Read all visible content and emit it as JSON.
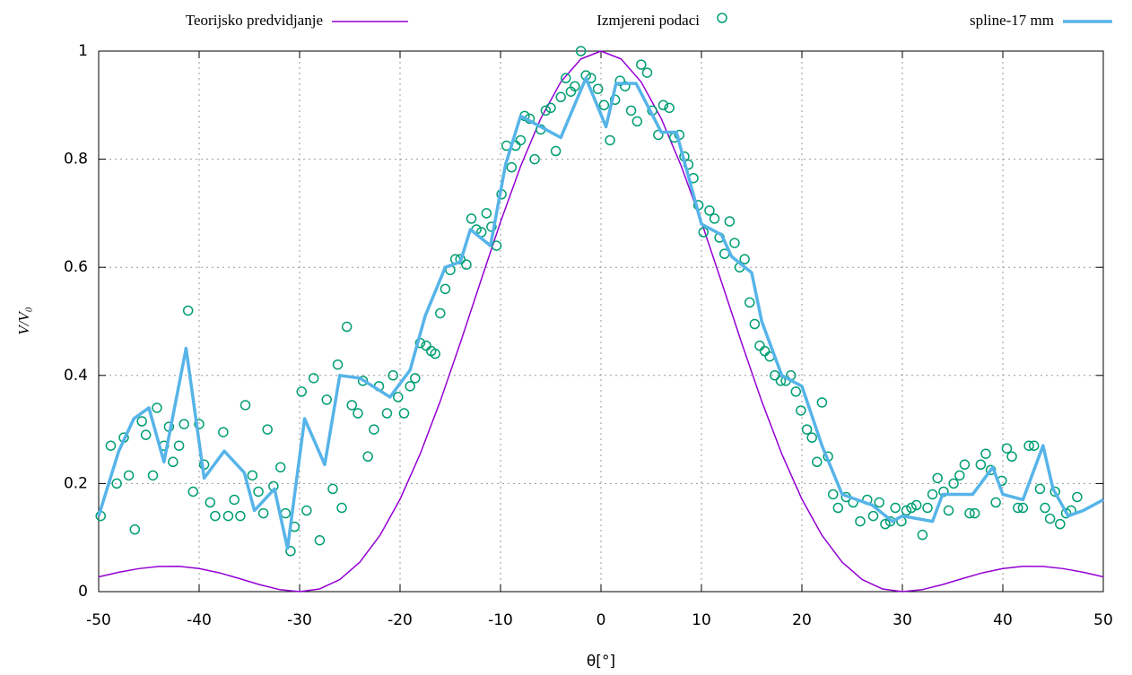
{
  "chart_data": {
    "type": "line",
    "xlabel": "θ[°]",
    "ylabel": "V/V₀",
    "xlim": [
      -50,
      50
    ],
    "ylim": [
      0,
      1
    ],
    "xticks": [
      -50,
      -40,
      -30,
      -20,
      -10,
      0,
      10,
      20,
      30,
      40,
      50
    ],
    "yticks": [
      0,
      0.2,
      0.4,
      0.6,
      0.8,
      1
    ],
    "grid": true,
    "legend": "top",
    "series": [
      {
        "name": "Teorijsko predvidjanje",
        "type": "line",
        "color": "#9400d3",
        "x": [
          -50,
          -48,
          -46,
          -44,
          -42,
          -40,
          -38,
          -36,
          -34,
          -32,
          -30,
          -28,
          -26,
          -24,
          -22,
          -20,
          -18,
          -16,
          -14,
          -12,
          -10,
          -8,
          -6,
          -4,
          -2,
          0,
          2,
          4,
          6,
          8,
          10,
          12,
          14,
          16,
          18,
          20,
          22,
          24,
          26,
          28,
          30,
          32,
          34,
          36,
          38,
          40,
          42,
          44,
          46,
          48,
          50
        ],
        "values": [
          0.0273,
          0.0358,
          0.0426,
          0.0466,
          0.0468,
          0.0427,
          0.0349,
          0.0243,
          0.0131,
          0.0038,
          0,
          0.005,
          0.0223,
          0.0547,
          0.1041,
          0.171,
          0.2546,
          0.3523,
          0.4602,
          0.5728,
          0.6839,
          0.7869,
          0.8751,
          0.9429,
          0.9855,
          1,
          0.9855,
          0.9429,
          0.8751,
          0.7869,
          0.6839,
          0.5728,
          0.4602,
          0.3523,
          0.2546,
          0.171,
          0.1041,
          0.0547,
          0.0223,
          0.005,
          0,
          0.0038,
          0.0131,
          0.0243,
          0.0349,
          0.0427,
          0.0468,
          0.0466,
          0.0426,
          0.0358,
          0.0273
        ]
      },
      {
        "name": "Izmjereni podaci",
        "type": "scatter",
        "color": "#009e73",
        "x": [
          -49.8,
          -48.8,
          -48.2,
          -47.5,
          -47,
          -46.4,
          -45.7,
          -45.3,
          -44.6,
          -44.2,
          -43.5,
          -43,
          -42.6,
          -42,
          -41.5,
          -41.1,
          -40.6,
          -40,
          -39.5,
          -38.9,
          -38.4,
          -37.6,
          -37.1,
          -36.5,
          -35.9,
          -35.4,
          -34.7,
          -34.1,
          -33.6,
          -33.2,
          -32.6,
          -31.9,
          -31.4,
          -30.9,
          -30.5,
          -29.8,
          -29.3,
          -28.6,
          -28,
          -27.3,
          -26.7,
          -26.2,
          -25.8,
          -25.3,
          -24.8,
          -24.2,
          -23.7,
          -23.2,
          -22.6,
          -22.1,
          -21.3,
          -20.7,
          -20.2,
          -19.6,
          -19,
          -18.5,
          -18,
          -17.4,
          -16.9,
          -16.5,
          -16,
          -15.5,
          -15,
          -14.5,
          -14,
          -13.4,
          -12.9,
          -12.4,
          -11.9,
          -11.4,
          -10.9,
          -10.4,
          -9.9,
          -9.4,
          -8.9,
          -8.5,
          -8,
          -7.6,
          -7.1,
          -6.6,
          -6,
          -5.5,
          -5,
          -4.5,
          -4,
          -3.5,
          -3,
          -2.6,
          -2,
          -1.5,
          -1,
          -0.3,
          0.3,
          0.9,
          1.4,
          1.9,
          2.4,
          3,
          3.6,
          4,
          4.6,
          5.1,
          5.7,
          6.2,
          6.8,
          7.3,
          7.8,
          8.3,
          8.7,
          9.2,
          9.7,
          10.2,
          10.8,
          11.3,
          11.8,
          12.3,
          12.8,
          13.3,
          13.8,
          14.3,
          14.8,
          15.3,
          15.8,
          16.3,
          16.8,
          17.3,
          17.9,
          18.4,
          18.9,
          19.4,
          19.9,
          20.5,
          21,
          21.5,
          22,
          22.6,
          23.1,
          23.6,
          24.4,
          25.1,
          25.8,
          26.5,
          27.1,
          27.7,
          28.3,
          28.8,
          29.3,
          29.9,
          30.4,
          30.9,
          31.4,
          32,
          32.5,
          33,
          33.5,
          34.1,
          34.6,
          35.1,
          35.7,
          36.2,
          36.7,
          37.2,
          37.8,
          38.3,
          38.8,
          39.3,
          39.9,
          40.4,
          40.9,
          41.5,
          42,
          42.6,
          43.1,
          43.7,
          44.2,
          44.7,
          45.2,
          45.7,
          46.3,
          46.8,
          47.4
        ],
        "values": [
          0.14,
          0.27,
          0.2,
          0.285,
          0.215,
          0.115,
          0.315,
          0.29,
          0.215,
          0.34,
          0.27,
          0.305,
          0.24,
          0.27,
          0.31,
          0.52,
          0.185,
          0.31,
          0.235,
          0.165,
          0.14,
          0.295,
          0.14,
          0.17,
          0.14,
          0.345,
          0.215,
          0.185,
          0.145,
          0.3,
          0.195,
          0.23,
          0.145,
          0.075,
          0.12,
          0.37,
          0.15,
          0.395,
          0.095,
          0.355,
          0.19,
          0.42,
          0.155,
          0.49,
          0.345,
          0.33,
          0.39,
          0.25,
          0.3,
          0.38,
          0.33,
          0.4,
          0.36,
          0.33,
          0.38,
          0.395,
          0.46,
          0.455,
          0.445,
          0.44,
          0.515,
          0.56,
          0.595,
          0.615,
          0.615,
          0.605,
          0.69,
          0.67,
          0.665,
          0.7,
          0.675,
          0.64,
          0.735,
          0.825,
          0.785,
          0.825,
          0.835,
          0.88,
          0.875,
          0.8,
          0.855,
          0.89,
          0.895,
          0.815,
          0.915,
          0.95,
          0.925,
          0.935,
          1,
          0.955,
          0.95,
          0.93,
          0.9,
          0.835,
          0.91,
          0.945,
          0.935,
          0.89,
          0.87,
          0.975,
          0.96,
          0.89,
          0.845,
          0.9,
          0.895,
          0.84,
          0.845,
          0.805,
          0.79,
          0.765,
          0.715,
          0.665,
          0.705,
          0.69,
          0.655,
          0.625,
          0.685,
          0.645,
          0.6,
          0.615,
          0.535,
          0.495,
          0.455,
          0.445,
          0.435,
          0.4,
          0.39,
          0.39,
          0.4,
          0.37,
          0.335,
          0.3,
          0.285,
          0.24,
          0.35,
          0.25,
          0.18,
          0.155,
          0.175,
          0.165,
          0.13,
          0.17,
          0.14,
          0.165,
          0.125,
          0.13,
          0.155,
          0.13,
          0.15,
          0.155,
          0.16,
          0.105,
          0.155,
          0.18,
          0.21,
          0.185,
          0.15,
          0.2,
          0.215,
          0.235,
          0.145,
          0.145,
          0.235,
          0.255,
          0.225,
          0.165,
          0.205,
          0.265,
          0.25,
          0.155,
          0.155,
          0.27,
          0.27,
          0.19,
          0.155,
          0.135,
          0.185,
          0.125,
          0.145,
          0.15,
          0.175
        ]
      },
      {
        "name": "spline-17 mm",
        "type": "line",
        "color": "#56b4e9",
        "x": [
          -50,
          -48,
          -46.5,
          -45,
          -43.5,
          -41.3,
          -39.5,
          -37.5,
          -35.5,
          -34.5,
          -32.5,
          -31.2,
          -29.5,
          -27.5,
          -26,
          -24,
          -21,
          -19,
          -17.5,
          -15.5,
          -14,
          -13,
          -11,
          -9.5,
          -8,
          -6,
          -4,
          -1.5,
          0.5,
          1.5,
          3.5,
          6,
          7.5,
          10,
          12,
          13,
          15,
          16,
          18,
          20,
          22,
          24,
          27,
          29,
          30,
          33,
          34,
          35,
          37,
          39,
          40,
          42,
          44,
          45,
          46.5,
          48,
          50
        ],
        "values": [
          0.14,
          0.26,
          0.32,
          0.34,
          0.24,
          0.45,
          0.21,
          0.26,
          0.22,
          0.15,
          0.19,
          0.08,
          0.32,
          0.235,
          0.4,
          0.395,
          0.36,
          0.41,
          0.51,
          0.6,
          0.61,
          0.67,
          0.64,
          0.79,
          0.88,
          0.86,
          0.84,
          0.95,
          0.86,
          0.94,
          0.94,
          0.85,
          0.85,
          0.68,
          0.66,
          0.62,
          0.59,
          0.5,
          0.4,
          0.38,
          0.27,
          0.18,
          0.16,
          0.13,
          0.14,
          0.13,
          0.18,
          0.18,
          0.18,
          0.23,
          0.18,
          0.17,
          0.27,
          0.19,
          0.14,
          0.15,
          0.17
        ]
      }
    ]
  }
}
